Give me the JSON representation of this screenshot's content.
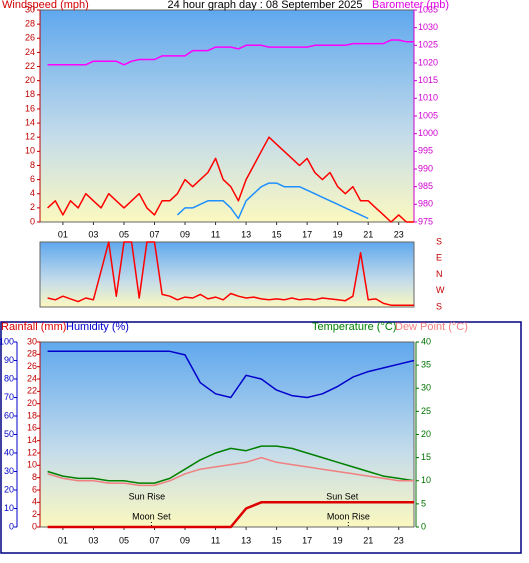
{
  "chart_data": [
    {
      "type": "line",
      "title": "24 hour graph day : 08 September 2025",
      "ylabel": "Windspeed (mph)",
      "y2label": "Barometer (mb)",
      "x": [
        0,
        0.5,
        1,
        1.5,
        2,
        2.5,
        3,
        3.5,
        4,
        4.5,
        5,
        5.5,
        6,
        6.5,
        7,
        7.5,
        8,
        8.5,
        9,
        9.5,
        10,
        10.5,
        11,
        11.5,
        12,
        12.5,
        13,
        13.5,
        14,
        14.5,
        15,
        15.5,
        16,
        16.5,
        17,
        17.5,
        18,
        18.5,
        19,
        19.5,
        20,
        20.5,
        21,
        21.5,
        22,
        22.5,
        23,
        23.5,
        24
      ],
      "xlim": [
        -0.5,
        24
      ],
      "xticks": [
        {
          "value": 1,
          "label": "01"
        },
        {
          "value": 3,
          "label": "03"
        },
        {
          "value": 5,
          "label": "05"
        },
        {
          "value": 7,
          "label": "07"
        },
        {
          "value": 9,
          "label": "09"
        },
        11,
        13,
        15,
        17,
        19,
        21,
        23
      ],
      "ylim": [
        0,
        30
      ],
      "yticks": [
        0,
        2,
        4,
        6,
        8,
        10,
        12,
        14,
        16,
        18,
        20,
        22,
        24,
        26,
        28,
        30
      ],
      "y2lim": [
        975,
        1035
      ],
      "y2ticks": [
        975,
        980,
        985,
        990,
        995,
        1000,
        1005,
        1010,
        1015,
        1020,
        1025,
        1030,
        1035
      ],
      "series": [
        {
          "color": "#ff0000",
          "axis": "y",
          "values": [
            2,
            3,
            1,
            3,
            2,
            4,
            3,
            2,
            4,
            3,
            2,
            3,
            4,
            2,
            1,
            3,
            3,
            4,
            6,
            5,
            6,
            7,
            9,
            6,
            5,
            3,
            6,
            8,
            10,
            12,
            11,
            10,
            9,
            8,
            9,
            7,
            6,
            7,
            5,
            4,
            5,
            3,
            3,
            2,
            1,
            0,
            1,
            0,
            0
          ]
        },
        {
          "color": "#1e90ff",
          "axis": "y",
          "values": [
            null,
            null,
            null,
            null,
            null,
            null,
            null,
            null,
            null,
            null,
            null,
            null,
            null,
            null,
            null,
            null,
            null,
            1,
            2,
            2,
            2.5,
            3,
            3,
            3,
            2,
            0.5,
            3,
            4,
            5,
            5.5,
            5.5,
            5,
            5,
            5,
            4.5,
            4,
            3.5,
            3,
            2.5,
            2,
            1.5,
            1,
            0.5,
            null,
            null,
            null,
            null,
            null,
            null
          ]
        },
        {
          "color": "#ff00ff",
          "axis": "y2",
          "values": [
            1019.5,
            1019.5,
            1019.5,
            1019.5,
            1019.5,
            1019.5,
            1020.5,
            1020.5,
            1020.5,
            1020.5,
            1019.5,
            1020.5,
            1021,
            1021,
            1021,
            1022,
            1022,
            1022,
            1022,
            1023.5,
            1023.5,
            1023.5,
            1024.5,
            1024.5,
            1024.5,
            1024,
            1025,
            1025,
            1025,
            1024.5,
            1024.5,
            1024.5,
            1024.5,
            1024.5,
            1024.5,
            1025,
            1025,
            1025,
            1025,
            1025,
            1025.5,
            1025.5,
            1025.5,
            1025.5,
            1025.5,
            1026.5,
            1026.5,
            1026,
            1026
          ]
        }
      ]
    },
    {
      "type": "line",
      "x": [
        0,
        0.5,
        1,
        1.5,
        2,
        2.5,
        3,
        3.5,
        4,
        4.5,
        5,
        5.5,
        6,
        6.5,
        7,
        7.5,
        8,
        8.5,
        9,
        9.5,
        10,
        10.5,
        11,
        11.5,
        12,
        12.5,
        13,
        13.5,
        14,
        14.5,
        15,
        15.5,
        16,
        16.5,
        17,
        17.5,
        18,
        18.5,
        19,
        19.5,
        20,
        20.5,
        21,
        21.5,
        22,
        22.5,
        23,
        23.5,
        24
      ],
      "xlim": [
        -0.5,
        24
      ],
      "ylim": [
        0,
        360
      ],
      "yticks": [
        {
          "value": 0,
          "label": "S"
        },
        {
          "value": 90,
          "label": "W"
        },
        {
          "value": 180,
          "label": "N"
        },
        {
          "value": 270,
          "label": "E"
        },
        {
          "value": 360,
          "label": "S"
        }
      ],
      "series": [
        {
          "color": "#ff0000",
          "axis": "y",
          "values": [
            50,
            40,
            60,
            45,
            30,
            50,
            40,
            200,
            360,
            60,
            360,
            360,
            50,
            360,
            360,
            70,
            60,
            40,
            55,
            50,
            70,
            45,
            55,
            40,
            75,
            60,
            50,
            55,
            45,
            40,
            45,
            40,
            50,
            40,
            45,
            40,
            50,
            45,
            40,
            35,
            60,
            300,
            40,
            45,
            20,
            10,
            10,
            10,
            10
          ]
        }
      ]
    },
    {
      "type": "line",
      "x": [
        0,
        1,
        2,
        3,
        4,
        5,
        6,
        7,
        8,
        9,
        10,
        11,
        12,
        13,
        14,
        15,
        16,
        17,
        18,
        19,
        20,
        21,
        22,
        23,
        24
      ],
      "xlim": [
        -0.5,
        24
      ],
      "xticks": [
        {
          "value": 1,
          "label": "01"
        },
        {
          "value": 3,
          "label": "03"
        },
        {
          "value": 5,
          "label": "05"
        },
        {
          "value": 7,
          "label": "07"
        },
        {
          "value": 9,
          "label": "09"
        },
        11,
        13,
        15,
        17,
        19,
        21,
        23
      ],
      "ylim": [
        0,
        30
      ],
      "yticks": [
        0,
        2,
        4,
        6,
        8,
        10,
        12,
        14,
        16,
        18,
        20,
        22,
        24,
        26,
        28,
        30
      ],
      "y2lim": [
        0,
        40
      ],
      "y2ticks": [
        0,
        5,
        10,
        15,
        20,
        25,
        30,
        35,
        40
      ],
      "y3lim": [
        0,
        100
      ],
      "y3ticks": [
        0,
        10,
        20,
        30,
        40,
        50,
        60,
        70,
        80,
        90,
        100
      ],
      "annotations": [
        {
          "text": "Sun Rise",
          "x": 6.5
        },
        {
          "text": "Moon Set",
          "x": 6.8
        },
        {
          "text": "Sun Set",
          "x": 19.3
        },
        {
          "text": "Moon Rise",
          "x": 19.7
        }
      ],
      "series": [
        {
          "name": "Rainfall (mm)",
          "color": "#dd0000",
          "axis": "y",
          "values": [
            0,
            0,
            0,
            0,
            0,
            0,
            0,
            0,
            0,
            0,
            0,
            0,
            0,
            3,
            4,
            4,
            4,
            4,
            4,
            4,
            4,
            4,
            4,
            4,
            4
          ]
        },
        {
          "name": "Humidity (%)",
          "color": "#0000cc",
          "axis": "y3",
          "values": [
            95,
            95,
            95,
            95,
            95,
            95,
            95,
            95,
            95,
            93,
            78,
            72,
            70,
            82,
            80,
            74,
            71,
            70,
            72,
            76,
            81,
            84,
            86,
            88,
            90
          ]
        },
        {
          "name": "Temperature (°C)",
          "color": "#008000",
          "axis": "y2",
          "values": [
            12,
            11,
            10.5,
            10.5,
            10,
            10,
            9.5,
            9.5,
            10.5,
            12.5,
            14.5,
            16,
            17,
            16.5,
            17.5,
            17.5,
            17,
            16,
            15,
            14,
            13,
            12,
            11,
            10.5,
            10
          ]
        },
        {
          "name": "Dew Point (°C)",
          "color": "#f08080",
          "axis": "y2",
          "values": [
            11.5,
            10.5,
            10,
            10,
            9.5,
            9.5,
            9,
            9,
            10,
            11.5,
            12.5,
            13,
            13.5,
            14,
            15,
            14,
            13.5,
            13,
            12.5,
            12,
            11.5,
            11,
            10.5,
            10,
            10
          ]
        }
      ]
    }
  ]
}
